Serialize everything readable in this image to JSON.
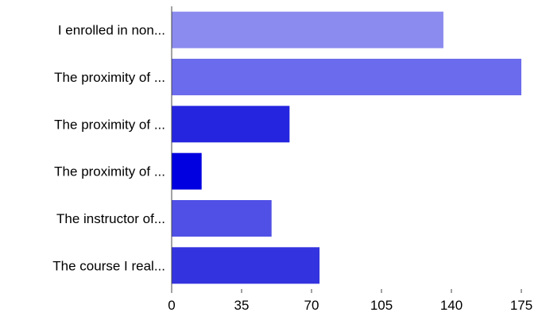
{
  "chart_data": {
    "type": "bar",
    "orientation": "horizontal",
    "categories": [
      "I enrolled in non...",
      "The proximity of ...",
      "The proximity of ...",
      "The proximity of ...",
      "The instructor of...",
      "The course I real..."
    ],
    "values": [
      136,
      175,
      59,
      15,
      50,
      74
    ],
    "colors": [
      "#8b8bef",
      "#6b6bed",
      "#2525e0",
      "#0000e0",
      "#5050e6",
      "#3333df"
    ],
    "xlim": [
      0,
      175
    ],
    "xticks": [
      "0",
      "35",
      "70",
      "105",
      "140",
      "175"
    ],
    "grid": false,
    "title": "",
    "xlabel": "",
    "ylabel": ""
  }
}
